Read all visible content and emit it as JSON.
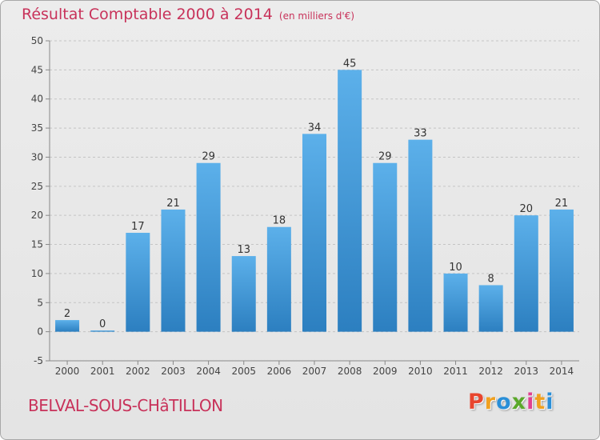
{
  "chart_data": {
    "type": "bar",
    "title": "Résultat Comptable 2000 à 2014",
    "subtitle": "(en milliers d'€)",
    "categories": [
      "2000",
      "2001",
      "2002",
      "2003",
      "2004",
      "2005",
      "2006",
      "2007",
      "2008",
      "2009",
      "2010",
      "2011",
      "2012",
      "2013",
      "2014"
    ],
    "values": [
      2,
      0,
      17,
      21,
      29,
      13,
      18,
      34,
      45,
      29,
      33,
      10,
      8,
      20,
      21
    ],
    "ylim": [
      -5,
      50
    ],
    "yticks": [
      -5,
      0,
      5,
      10,
      15,
      20,
      25,
      30,
      35,
      40,
      45,
      50
    ],
    "xlabel": "",
    "ylabel": "",
    "grid": "horizontal-dashed",
    "bar_color": "#4a9fdc"
  },
  "footer": {
    "place_name": "BELVAL-SOUS-CHâTILLON",
    "logo_text": "Proxiti"
  },
  "colors": {
    "title": "#c8325a",
    "logo_letters": [
      "#e8462e",
      "#f0a020",
      "#2a8fd8",
      "#5aa82a",
      "#e04090",
      "#f0a020",
      "#2a8fd8"
    ]
  }
}
